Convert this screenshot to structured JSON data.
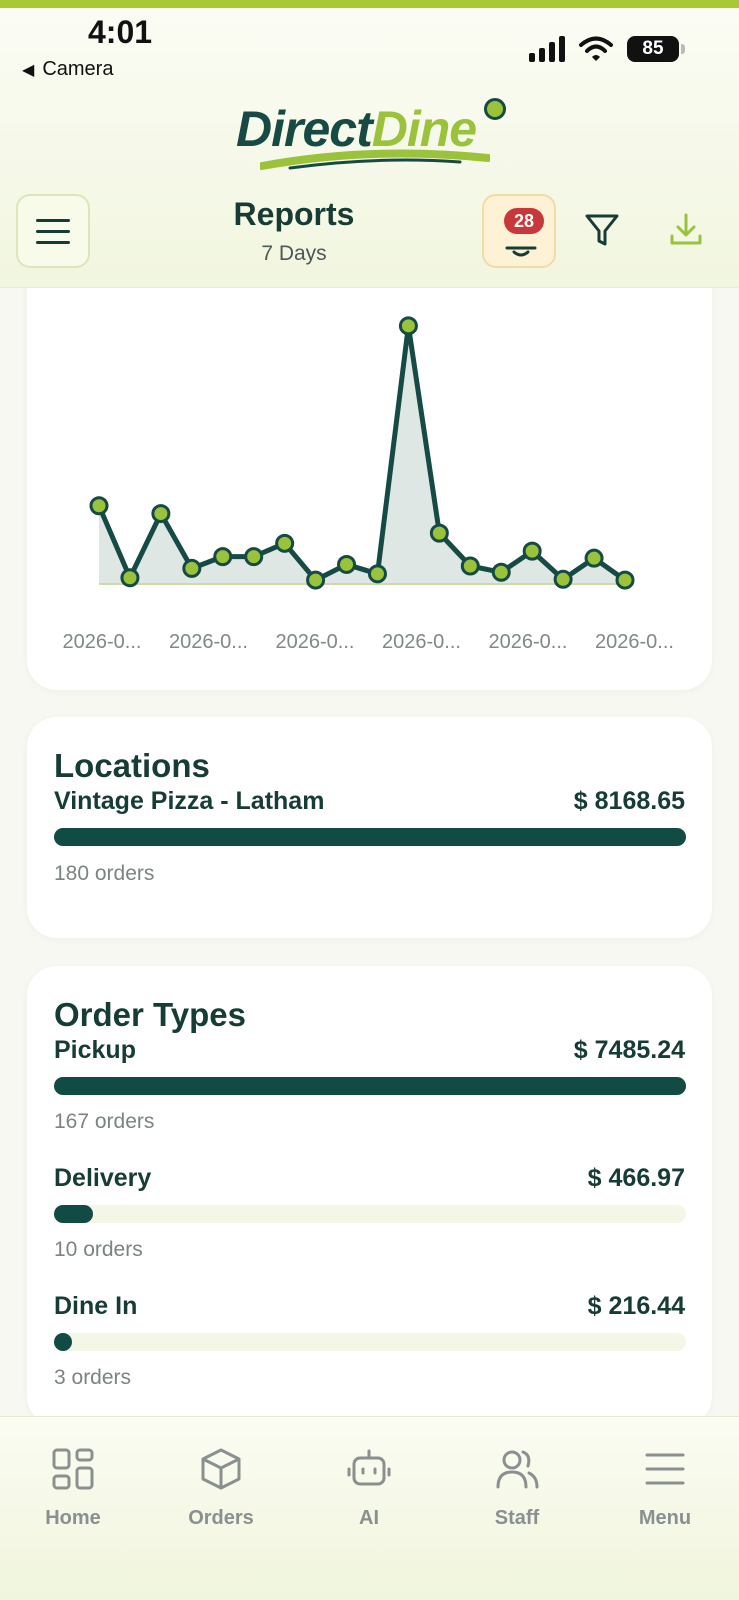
{
  "status_bar": {
    "time": "4:01",
    "back_label": "Camera",
    "battery": "85"
  },
  "brand": {
    "part1": "Direct",
    "part2": "Dine"
  },
  "header": {
    "title": "Reports",
    "subtitle": "7 Days",
    "notification_count": "28"
  },
  "colors": {
    "accent": "#9ac23a",
    "primary": "#124a44",
    "badge": "#c8373a",
    "track": "#f4f7e6"
  },
  "chart_data": {
    "type": "area",
    "x_tick_labels": [
      "2026-0...",
      "2026-0...",
      "2026-0...",
      "2026-0...",
      "2026-0...",
      "2026-0..."
    ],
    "values": [
      100,
      8,
      90,
      20,
      35,
      35,
      52,
      5,
      25,
      13,
      330,
      65,
      23,
      15,
      42,
      6,
      33,
      5
    ],
    "ylim": [
      0,
      340
    ],
    "grid": false,
    "legend": "none"
  },
  "locations": {
    "title": "Locations",
    "items": [
      {
        "name": "Vintage Pizza - Latham",
        "amount": "$ 8168.65",
        "orders": "180 orders",
        "share": 1.0
      }
    ]
  },
  "order_types": {
    "title": "Order Types",
    "items": [
      {
        "name": "Pickup",
        "amount": "$ 7485.24",
        "orders": "167 orders",
        "share": 1.0
      },
      {
        "name": "Delivery",
        "amount": "$ 466.97",
        "orders": "10 orders",
        "share": 0.062
      },
      {
        "name": "Dine In",
        "amount": "$ 216.44",
        "orders": "3 orders",
        "share": 0.029
      }
    ]
  },
  "tabs": [
    {
      "label": "Home",
      "icon": "home-grid-icon"
    },
    {
      "label": "Orders",
      "icon": "box-icon"
    },
    {
      "label": "AI",
      "icon": "robot-icon"
    },
    {
      "label": "Staff",
      "icon": "users-icon"
    },
    {
      "label": "Menu",
      "icon": "menu-lines-icon"
    }
  ]
}
